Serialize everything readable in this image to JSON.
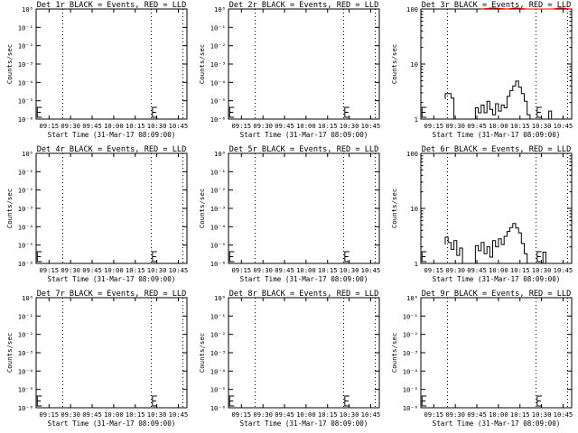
{
  "figure": {
    "background": "#ffffff",
    "events_color": "#000000",
    "lld_color": "#ff0000"
  },
  "chart_data": [
    {
      "type": "line",
      "title": "Det 1r BLACK = Events, RED = LLD",
      "xlabel": "Start Time (31-Mar-17 08:09:00)",
      "ylabel": "Counts/sec",
      "x_tick_labels": [
        "09:15",
        "09:30",
        "09:45",
        "10:00",
        "10:15",
        "10:30",
        "10:45"
      ],
      "x_ticks_minutes": [
        15,
        30,
        45,
        60,
        75,
        90,
        105
      ],
      "xlim_minutes": [
        6,
        111
      ],
      "yscale": "log",
      "y_tick_labels": [
        "10⁰",
        "10⁻¹",
        "10⁻²",
        "10⁻³",
        "10⁻⁴",
        "10⁻⁵",
        "10⁻⁶"
      ],
      "y_tick_values": [
        1,
        0.1,
        0.01,
        0.001,
        0.0001,
        1e-05,
        1e-06
      ],
      "ylim": [
        1,
        1e-06
      ],
      "dotted_lines_minutes": [
        24,
        86,
        108
      ],
      "series": []
    },
    {
      "type": "line",
      "title": "Det 2r BLACK = Events, RED = LLD",
      "xlabel": "Start Time (31-Mar-17 08:09:00)",
      "ylabel": "Counts/sec",
      "x_tick_labels": [
        "09:15",
        "09:30",
        "09:45",
        "10:00",
        "10:15",
        "10:30",
        "10:45"
      ],
      "x_ticks_minutes": [
        15,
        30,
        45,
        60,
        75,
        90,
        105
      ],
      "xlim_minutes": [
        6,
        111
      ],
      "yscale": "log",
      "y_tick_labels": [
        "10⁰",
        "10⁻¹",
        "10⁻²",
        "10⁻³",
        "10⁻⁴",
        "10⁻⁵",
        "10⁻⁶"
      ],
      "y_tick_values": [
        1,
        0.1,
        0.01,
        0.001,
        0.0001,
        1e-05,
        1e-06
      ],
      "ylim": [
        1,
        1e-06
      ],
      "dotted_lines_minutes": [
        24,
        86,
        108
      ],
      "series": []
    },
    {
      "type": "line",
      "title": "Det 3r BLACK = Events, RED = LLD",
      "xlabel": "Start Time (31-Mar-17 08:09:00)",
      "ylabel": "Counts/sec",
      "x_tick_labels": [
        "09:15",
        "09:30",
        "09:45",
        "10:00",
        "10:15",
        "10:30",
        "10:45"
      ],
      "x_ticks_minutes": [
        15,
        30,
        45,
        60,
        75,
        90,
        105
      ],
      "xlim_minutes": [
        6,
        111
      ],
      "yscale": "log",
      "y_tick_labels": [
        "100",
        "10",
        "1"
      ],
      "y_tick_values": [
        100,
        10,
        1
      ],
      "ylim": [
        1,
        100
      ],
      "dotted_lines_minutes": [
        24,
        86,
        108
      ],
      "series": [
        {
          "color": "#000000",
          "values": [
            [
              23,
              2.3
            ],
            [
              23,
              2.9
            ],
            [
              27,
              2.9
            ],
            [
              27,
              2.4
            ],
            [
              29,
              2.4
            ],
            [
              29,
              1
            ],
            [
              44,
              1
            ],
            [
              44,
              1.6
            ],
            [
              46,
              1.6
            ],
            [
              46,
              1.3
            ],
            [
              48,
              1.3
            ],
            [
              48,
              1.8
            ],
            [
              50,
              1.8
            ],
            [
              50,
              1.3
            ],
            [
              52,
              1.3
            ],
            [
              52,
              2.1
            ],
            [
              54,
              2.1
            ],
            [
              54,
              1.5
            ],
            [
              56,
              1.5
            ],
            [
              56,
              1.2
            ],
            [
              58,
              1.2
            ],
            [
              58,
              1.9
            ],
            [
              60,
              1.9
            ],
            [
              60,
              1.4
            ],
            [
              62,
              1.4
            ],
            [
              62,
              1.8
            ],
            [
              64,
              1.8
            ],
            [
              64,
              1.6
            ],
            [
              66,
              1.6
            ],
            [
              66,
              2.6
            ],
            [
              68,
              2.6
            ],
            [
              68,
              3.3
            ],
            [
              70,
              3.3
            ],
            [
              70,
              4.0
            ],
            [
              72,
              4.0
            ],
            [
              72,
              4.9
            ],
            [
              74,
              4.9
            ],
            [
              74,
              3.8
            ],
            [
              76,
              3.8
            ],
            [
              76,
              2.9
            ],
            [
              78,
              2.9
            ],
            [
              78,
              2.1
            ],
            [
              80,
              2.1
            ],
            [
              80,
              1.2
            ],
            [
              82,
              1.2
            ],
            [
              82,
              1
            ],
            [
              95,
              1
            ],
            [
              95,
              1.4
            ],
            [
              97,
              1.4
            ],
            [
              97,
              1
            ]
          ]
        },
        {
          "color": "#ff0000",
          "values": [
            [
              48,
              100
            ],
            [
              56,
              105
            ],
            [
              66,
              100
            ],
            [
              72,
              105
            ],
            [
              80,
              100
            ],
            [
              98,
              100
            ],
            [
              103,
              105
            ],
            [
              110,
              100
            ]
          ]
        }
      ]
    },
    {
      "type": "line",
      "title": "Det 4r BLACK = Events, RED = LLD",
      "xlabel": "Start Time (31-Mar-17 08:09:00)",
      "ylabel": "Counts/sec",
      "x_tick_labels": [
        "09:15",
        "09:30",
        "09:45",
        "10:00",
        "10:15",
        "10:30",
        "10:45"
      ],
      "x_ticks_minutes": [
        15,
        30,
        45,
        60,
        75,
        90,
        105
      ],
      "xlim_minutes": [
        6,
        111
      ],
      "yscale": "log",
      "y_tick_labels": [
        "10⁰",
        "10⁻¹",
        "10⁻²",
        "10⁻³",
        "10⁻⁴",
        "10⁻⁵",
        "10⁻⁶"
      ],
      "y_tick_values": [
        1,
        0.1,
        0.01,
        0.001,
        0.0001,
        1e-05,
        1e-06
      ],
      "ylim": [
        1,
        1e-06
      ],
      "dotted_lines_minutes": [
        24,
        86,
        108
      ],
      "series": []
    },
    {
      "type": "line",
      "title": "Det 5r BLACK = Events, RED = LLD",
      "xlabel": "Start Time (31-Mar-17 08:09:00)",
      "ylabel": "Counts/sec",
      "x_tick_labels": [
        "09:15",
        "09:30",
        "09:45",
        "10:00",
        "10:15",
        "10:30",
        "10:45"
      ],
      "x_ticks_minutes": [
        15,
        30,
        45,
        60,
        75,
        90,
        105
      ],
      "xlim_minutes": [
        6,
        111
      ],
      "yscale": "log",
      "y_tick_labels": [
        "10⁰",
        "10⁻¹",
        "10⁻²",
        "10⁻³",
        "10⁻⁴",
        "10⁻⁵",
        "10⁻⁶"
      ],
      "y_tick_values": [
        1,
        0.1,
        0.01,
        0.001,
        0.0001,
        1e-05,
        1e-06
      ],
      "ylim": [
        1,
        1e-06
      ],
      "dotted_lines_minutes": [
        24,
        86,
        108
      ],
      "series": []
    },
    {
      "type": "line",
      "title": "Det 6r BLACK = Events, RED = LLD",
      "xlabel": "Start Time (31-Mar-17 08:09:00)",
      "ylabel": "Counts/sec",
      "x_tick_labels": [
        "09:15",
        "09:30",
        "09:45",
        "10:00",
        "10:15",
        "10:30",
        "10:45"
      ],
      "x_ticks_minutes": [
        15,
        30,
        45,
        60,
        75,
        90,
        105
      ],
      "xlim_minutes": [
        6,
        111
      ],
      "yscale": "log",
      "y_tick_labels": [
        "100",
        "10",
        "1"
      ],
      "y_tick_values": [
        100,
        10,
        1
      ],
      "ylim": [
        1,
        100
      ],
      "dotted_lines_minutes": [
        24,
        86,
        108
      ],
      "series": [
        {
          "color": "#000000",
          "values": [
            [
              23,
              2.2
            ],
            [
              23,
              3.0
            ],
            [
              25,
              3.0
            ],
            [
              25,
              2.4
            ],
            [
              27,
              2.4
            ],
            [
              27,
              1.8
            ],
            [
              29,
              1.8
            ],
            [
              29,
              2.6
            ],
            [
              31,
              2.6
            ],
            [
              31,
              1.4
            ],
            [
              33,
              1.4
            ],
            [
              33,
              1.9
            ],
            [
              35,
              1.9
            ],
            [
              35,
              1
            ],
            [
              44,
              1
            ],
            [
              44,
              2.1
            ],
            [
              46,
              2.1
            ],
            [
              46,
              1.7
            ],
            [
              48,
              1.7
            ],
            [
              48,
              2.4
            ],
            [
              50,
              2.4
            ],
            [
              50,
              1.5
            ],
            [
              52,
              1.5
            ],
            [
              52,
              2.0
            ],
            [
              54,
              2.0
            ],
            [
              54,
              1.3
            ],
            [
              56,
              1.3
            ],
            [
              56,
              2.6
            ],
            [
              58,
              2.6
            ],
            [
              58,
              2.0
            ],
            [
              60,
              2.0
            ],
            [
              60,
              2.8
            ],
            [
              62,
              2.8
            ],
            [
              62,
              2.2
            ],
            [
              64,
              2.2
            ],
            [
              64,
              3.1
            ],
            [
              66,
              3.1
            ],
            [
              66,
              3.8
            ],
            [
              68,
              3.8
            ],
            [
              68,
              4.5
            ],
            [
              70,
              4.5
            ],
            [
              70,
              5.3
            ],
            [
              72,
              5.3
            ],
            [
              72,
              4.4
            ],
            [
              74,
              4.4
            ],
            [
              74,
              3.6
            ],
            [
              76,
              3.6
            ],
            [
              76,
              2.3
            ],
            [
              78,
              2.3
            ],
            [
              78,
              1.5
            ],
            [
              80,
              1.5
            ],
            [
              80,
              1
            ],
            [
              91,
              1
            ],
            [
              91,
              1.6
            ],
            [
              93,
              1.6
            ],
            [
              93,
              1
            ]
          ]
        }
      ]
    },
    {
      "type": "line",
      "title": "Det 7r BLACK = Events, RED = LLD",
      "xlabel": "Start Time (31-Mar-17 08:09:00)",
      "ylabel": "Counts/sec",
      "x_tick_labels": [
        "09:15",
        "09:30",
        "09:45",
        "10:00",
        "10:15",
        "10:30",
        "10:45"
      ],
      "x_ticks_minutes": [
        15,
        30,
        45,
        60,
        75,
        90,
        105
      ],
      "xlim_minutes": [
        6,
        111
      ],
      "yscale": "log",
      "y_tick_labels": [
        "10⁰",
        "10⁻¹",
        "10⁻²",
        "10⁻³",
        "10⁻⁴",
        "10⁻⁵",
        "10⁻⁶"
      ],
      "y_tick_values": [
        1,
        0.1,
        0.01,
        0.001,
        0.0001,
        1e-05,
        1e-06
      ],
      "ylim": [
        1,
        1e-06
      ],
      "dotted_lines_minutes": [
        24,
        86,
        108
      ],
      "series": []
    },
    {
      "type": "line",
      "title": "Det 8r BLACK = Events, RED = LLD",
      "xlabel": "Start Time (31-Mar-17 08:09:00)",
      "ylabel": "Counts/sec",
      "x_tick_labels": [
        "09:15",
        "09:30",
        "09:45",
        "10:00",
        "10:15",
        "10:30",
        "10:45"
      ],
      "x_ticks_minutes": [
        15,
        30,
        45,
        60,
        75,
        90,
        105
      ],
      "xlim_minutes": [
        6,
        111
      ],
      "yscale": "log",
      "y_tick_labels": [
        "10⁰",
        "10⁻¹",
        "10⁻²",
        "10⁻³",
        "10⁻⁴",
        "10⁻⁵",
        "10⁻⁶"
      ],
      "y_tick_values": [
        1,
        0.1,
        0.01,
        0.001,
        0.0001,
        1e-05,
        1e-06
      ],
      "ylim": [
        1,
        1e-06
      ],
      "dotted_lines_minutes": [
        24,
        86,
        108
      ],
      "series": []
    },
    {
      "type": "line",
      "title": "Det 9r BLACK = Events, RED = LLD",
      "xlabel": "Start Time (31-Mar-17 08:09:00)",
      "ylabel": "Counts/sec",
      "x_tick_labels": [
        "09:15",
        "09:30",
        "09:45",
        "10:00",
        "10:15",
        "10:30",
        "10:45"
      ],
      "x_ticks_minutes": [
        15,
        30,
        45,
        60,
        75,
        90,
        105
      ],
      "xlim_minutes": [
        6,
        111
      ],
      "yscale": "log",
      "y_tick_labels": [
        "10⁰",
        "10⁻¹",
        "10⁻²",
        "10⁻³",
        "10⁻⁴",
        "10⁻⁵",
        "10⁻⁶"
      ],
      "y_tick_values": [
        1,
        0.1,
        0.01,
        0.001,
        0.0001,
        1e-05,
        1e-06
      ],
      "ylim": [
        1,
        1e-06
      ],
      "dotted_lines_minutes": [
        24,
        86,
        108
      ],
      "series": []
    }
  ]
}
